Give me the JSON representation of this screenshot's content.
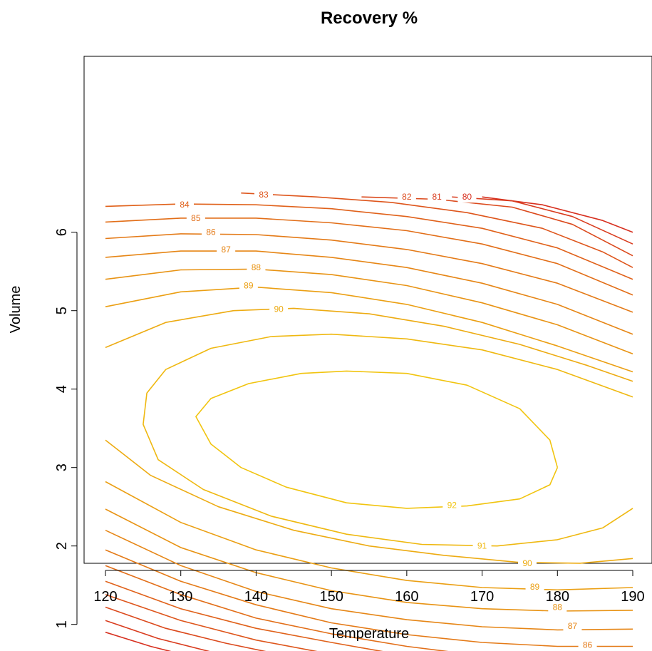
{
  "chart_data": {
    "type": "contour",
    "title": "Recovery %",
    "xlabel": "Temperature",
    "ylabel": "Volume",
    "xlim": [
      120,
      190
    ],
    "ylim": [
      0.5,
      6.5
    ],
    "xticks": [
      "120",
      "130",
      "140",
      "150",
      "160",
      "170",
      "180",
      "190"
    ],
    "yticks": [
      "1",
      "2",
      "3",
      "4",
      "5",
      "6"
    ],
    "grid": false,
    "colors": {
      "low": "#d7301f",
      "high": "#f1c40f"
    },
    "contours": [
      {
        "level": 80,
        "label": "80",
        "label_at": [
          [
            131.5,
            0.55
          ],
          [
            168,
            6.45
          ]
        ],
        "paths": [
          [
            [
              120,
              0.9
            ],
            [
              126,
              0.72
            ],
            [
              133,
              0.55
            ]
          ],
          [
            [
              170,
              6.45
            ],
            [
              178,
              6.35
            ],
            [
              186,
              6.15
            ],
            [
              190,
              6.0
            ]
          ]
        ]
      },
      {
        "level": 81,
        "label": "81",
        "label_at": [
          [
            137,
            0.58
          ],
          [
            164,
            6.45
          ]
        ],
        "paths": [
          [
            [
              120,
              1.05
            ],
            [
              127,
              0.82
            ],
            [
              134,
              0.65
            ],
            [
              139,
              0.55
            ]
          ],
          [
            [
              166,
              6.45
            ],
            [
              174,
              6.4
            ],
            [
              182,
              6.2
            ],
            [
              190,
              5.85
            ]
          ]
        ]
      },
      {
        "level": 82,
        "label": "82",
        "label_at": [
          [
            144,
            0.55
          ],
          [
            160,
            6.45
          ]
        ],
        "paths": [
          [
            [
              120,
              1.22
            ],
            [
              128,
              0.95
            ],
            [
              136,
              0.76
            ],
            [
              143,
              0.62
            ],
            [
              146,
              0.55
            ]
          ],
          [
            [
              154,
              6.45
            ],
            [
              164,
              6.42
            ],
            [
              174,
              6.32
            ],
            [
              182,
              6.1
            ],
            [
              190,
              5.7
            ]
          ]
        ]
      },
      {
        "level": 83,
        "label": "83",
        "label_at": [
          [
            152,
            0.55
          ],
          [
            141,
            6.48
          ]
        ],
        "paths": [
          [
            [
              120,
              1.38
            ],
            [
              130,
              1.05
            ],
            [
              140,
              0.8
            ],
            [
              150,
              0.62
            ],
            [
              156,
              0.55
            ]
          ],
          [
            [
              138,
              6.5
            ],
            [
              148,
              6.45
            ],
            [
              158,
              6.38
            ],
            [
              168,
              6.25
            ],
            [
              178,
              6.05
            ],
            [
              186,
              5.75
            ],
            [
              190,
              5.55
            ]
          ]
        ]
      },
      {
        "level": 84,
        "label": "84",
        "label_at": [
          [
            161,
            0.55
          ],
          [
            130.5,
            6.35
          ]
        ],
        "paths": [
          [
            [
              120,
              1.55
            ],
            [
              130,
              1.2
            ],
            [
              140,
              0.95
            ],
            [
              150,
              0.77
            ],
            [
              160,
              0.6
            ],
            [
              164,
              0.55
            ]
          ],
          [
            [
              120,
              6.33
            ],
            [
              130,
              6.36
            ],
            [
              140,
              6.35
            ],
            [
              150,
              6.3
            ],
            [
              160,
              6.2
            ],
            [
              170,
              6.05
            ],
            [
              180,
              5.8
            ],
            [
              190,
              5.4
            ]
          ]
        ]
      },
      {
        "level": 85,
        "label": "85",
        "label_at": [
          [
            186,
            0.52
          ],
          [
            132,
            6.18
          ]
        ],
        "paths": [
          [
            [
              120,
              1.75
            ],
            [
              130,
              1.38
            ],
            [
              140,
              1.08
            ],
            [
              150,
              0.88
            ],
            [
              160,
              0.72
            ],
            [
              170,
              0.6
            ],
            [
              180,
              0.53
            ],
            [
              190,
              0.52
            ]
          ],
          [
            [
              120,
              6.13
            ],
            [
              130,
              6.18
            ],
            [
              140,
              6.18
            ],
            [
              150,
              6.12
            ],
            [
              160,
              6.02
            ],
            [
              170,
              5.85
            ],
            [
              180,
              5.6
            ],
            [
              190,
              5.2
            ]
          ]
        ]
      },
      {
        "level": 86,
        "label": "86",
        "label_at": [
          [
            184,
            0.74
          ],
          [
            134,
            6.0
          ]
        ],
        "paths": [
          [
            [
              120,
              1.95
            ],
            [
              130,
              1.55
            ],
            [
              140,
              1.25
            ],
            [
              150,
              1.02
            ],
            [
              160,
              0.87
            ],
            [
              170,
              0.77
            ],
            [
              180,
              0.72
            ],
            [
              190,
              0.72
            ]
          ],
          [
            [
              120,
              5.92
            ],
            [
              130,
              5.98
            ],
            [
              140,
              5.97
            ],
            [
              150,
              5.9
            ],
            [
              160,
              5.78
            ],
            [
              170,
              5.6
            ],
            [
              180,
              5.35
            ],
            [
              190,
              4.98
            ]
          ]
        ]
      },
      {
        "level": 87,
        "label": "87",
        "label_at": [
          [
            182,
            0.98
          ],
          [
            136,
            5.78
          ]
        ],
        "paths": [
          [
            [
              120,
              2.2
            ],
            [
              130,
              1.75
            ],
            [
              140,
              1.42
            ],
            [
              150,
              1.2
            ],
            [
              160,
              1.06
            ],
            [
              170,
              0.97
            ],
            [
              180,
              0.93
            ],
            [
              190,
              0.94
            ]
          ],
          [
            [
              120,
              5.68
            ],
            [
              130,
              5.76
            ],
            [
              140,
              5.76
            ],
            [
              150,
              5.68
            ],
            [
              160,
              5.55
            ],
            [
              170,
              5.35
            ],
            [
              180,
              5.08
            ],
            [
              190,
              4.7
            ]
          ]
        ]
      },
      {
        "level": 88,
        "label": "88",
        "label_at": [
          [
            180,
            1.22
          ],
          [
            140,
            5.55
          ]
        ],
        "paths": [
          [
            [
              120,
              2.47
            ],
            [
              130,
              1.98
            ],
            [
              140,
              1.66
            ],
            [
              150,
              1.43
            ],
            [
              160,
              1.28
            ],
            [
              170,
              1.2
            ],
            [
              180,
              1.17
            ],
            [
              190,
              1.18
            ]
          ],
          [
            [
              120,
              5.4
            ],
            [
              130,
              5.52
            ],
            [
              140,
              5.53
            ],
            [
              150,
              5.46
            ],
            [
              160,
              5.32
            ],
            [
              170,
              5.1
            ],
            [
              180,
              4.82
            ],
            [
              190,
              4.45
            ]
          ]
        ]
      },
      {
        "level": 89,
        "label": "89",
        "label_at": [
          [
            177,
            1.48
          ],
          [
            139,
            5.32
          ]
        ],
        "paths": [
          [
            [
              120,
              2.82
            ],
            [
              130,
              2.3
            ],
            [
              140,
              1.95
            ],
            [
              150,
              1.72
            ],
            [
              160,
              1.56
            ],
            [
              170,
              1.47
            ],
            [
              180,
              1.44
            ],
            [
              190,
              1.47
            ]
          ],
          [
            [
              120,
              5.05
            ],
            [
              130,
              5.24
            ],
            [
              140,
              5.3
            ],
            [
              150,
              5.23
            ],
            [
              160,
              5.08
            ],
            [
              170,
              4.85
            ],
            [
              180,
              4.55
            ],
            [
              190,
              4.22
            ]
          ]
        ]
      },
      {
        "level": 90,
        "label": "90",
        "label_at": [
          [
            176,
            1.78
          ],
          [
            143,
            5.02
          ]
        ],
        "paths": [
          [
            [
              120,
              3.35
            ],
            [
              126,
              2.9
            ],
            [
              135,
              2.5
            ],
            [
              145,
              2.2
            ],
            [
              155,
              2.0
            ],
            [
              165,
              1.88
            ],
            [
              175,
              1.79
            ],
            [
              183,
              1.78
            ],
            [
              190,
              1.84
            ]
          ],
          [
            [
              120,
              4.53
            ],
            [
              128,
              4.85
            ],
            [
              137,
              5.0
            ],
            [
              145,
              5.03
            ],
            [
              155,
              4.96
            ],
            [
              165,
              4.8
            ],
            [
              175,
              4.57
            ],
            [
              184,
              4.3
            ],
            [
              190,
              4.1
            ]
          ]
        ]
      },
      {
        "level": 91,
        "label": "91",
        "label_at": [
          [
            170,
            2.0
          ]
        ],
        "paths": [
          [
            [
              190,
              2.48
            ],
            [
              186,
              2.23
            ],
            [
              180,
              2.08
            ],
            [
              172,
              2.0
            ],
            [
              162,
              2.02
            ],
            [
              152,
              2.15
            ],
            [
              142,
              2.38
            ],
            [
              133,
              2.72
            ],
            [
              127,
              3.1
            ],
            [
              125,
              3.55
            ],
            [
              125.5,
              3.95
            ],
            [
              128,
              4.25
            ],
            [
              134,
              4.52
            ],
            [
              142,
              4.67
            ],
            [
              150,
              4.7
            ],
            [
              160,
              4.64
            ],
            [
              170,
              4.5
            ],
            [
              180,
              4.25
            ],
            [
              190,
              3.9
            ]
          ]
        ]
      },
      {
        "level": 92,
        "label": "92",
        "label_at": [
          [
            166,
            2.52
          ]
        ],
        "paths": [
          [
            [
              180,
              3.0
            ],
            [
              179,
              2.78
            ],
            [
              175,
              2.6
            ],
            [
              168,
              2.51
            ],
            [
              160,
              2.48
            ],
            [
              152,
              2.55
            ],
            [
              144,
              2.75
            ],
            [
              138,
              3.0
            ],
            [
              134,
              3.3
            ],
            [
              132,
              3.65
            ],
            [
              134,
              3.88
            ],
            [
              139,
              4.07
            ],
            [
              146,
              4.2
            ],
            [
              152,
              4.23
            ],
            [
              160,
              4.2
            ],
            [
              168,
              4.05
            ],
            [
              175,
              3.75
            ],
            [
              179,
              3.35
            ],
            [
              180,
              3.0
            ]
          ]
        ]
      }
    ]
  }
}
